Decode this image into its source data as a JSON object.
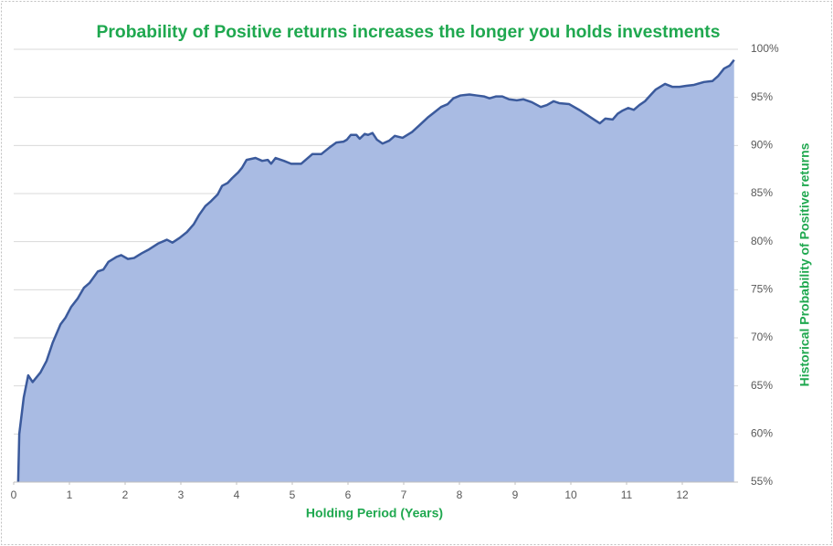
{
  "chart_data": {
    "type": "area",
    "title": "Probability of Positive returns increases the longer you holds investments",
    "x_label": "Holding Period (Years)",
    "y_label": "Historical Probability of Positive returns",
    "color": "#3b5a9c",
    "area_color": "#a9bbe3",
    "grid": true,
    "xlim": [
      0,
      13
    ],
    "xticks": [
      0,
      1,
      2,
      3,
      4,
      5,
      6,
      7,
      8,
      9,
      10,
      11,
      12
    ],
    "ylim": [
      55,
      100
    ],
    "yticks": [
      {
        "value": 55,
        "label": "55%"
      },
      {
        "value": 60,
        "label": "60%"
      },
      {
        "value": 65,
        "label": "65%"
      },
      {
        "value": 70,
        "label": "70%"
      },
      {
        "value": 75,
        "label": "75%"
      },
      {
        "value": 80,
        "label": "80%"
      },
      {
        "value": 85,
        "label": "85%"
      },
      {
        "value": 90,
        "label": "90%"
      },
      {
        "value": 95,
        "label": "95%"
      },
      {
        "value": 100,
        "label": "100%"
      }
    ],
    "x": [
      0.08,
      0.1,
      0.18,
      0.26,
      0.34,
      0.48,
      0.59,
      0.7,
      0.84,
      0.93,
      1.03,
      1.15,
      1.26,
      1.36,
      1.51,
      1.61,
      1.7,
      1.84,
      1.93,
      2.05,
      2.16,
      2.3,
      2.43,
      2.59,
      2.75,
      2.85,
      2.98,
      3.11,
      3.23,
      3.33,
      3.44,
      3.54,
      3.66,
      3.74,
      3.84,
      3.92,
      4.03,
      4.1,
      4.18,
      4.34,
      4.46,
      4.56,
      4.62,
      4.7,
      4.85,
      4.98,
      5.16,
      5.26,
      5.36,
      5.52,
      5.67,
      5.79,
      5.92,
      5.98,
      6.05,
      6.15,
      6.21,
      6.3,
      6.36,
      6.44,
      6.52,
      6.62,
      6.74,
      6.84,
      6.98,
      7.15,
      7.3,
      7.43,
      7.54,
      7.67,
      7.79,
      7.89,
      8.02,
      8.18,
      8.31,
      8.44,
      8.54,
      8.66,
      8.77,
      8.89,
      9.03,
      9.15,
      9.3,
      9.46,
      9.57,
      9.69,
      9.79,
      9.97,
      10.15,
      10.31,
      10.44,
      10.52,
      10.62,
      10.75,
      10.84,
      10.92,
      11.03,
      11.13,
      11.23,
      11.33,
      11.44,
      11.52,
      11.69,
      11.82,
      11.95,
      12.07,
      12.21,
      12.39,
      12.54,
      12.64,
      12.75,
      12.85,
      12.93
    ],
    "values": [
      55,
      60,
      63.8,
      66.1,
      65.4,
      66.4,
      67.6,
      69.5,
      71.4,
      72.1,
      73.2,
      74.1,
      75.2,
      75.7,
      76.9,
      77.1,
      77.9,
      78.4,
      78.6,
      78.2,
      78.3,
      78.8,
      79.2,
      79.8,
      80.2,
      79.9,
      80.4,
      81.0,
      81.8,
      82.8,
      83.7,
      84.2,
      84.9,
      85.8,
      86.1,
      86.6,
      87.2,
      87.7,
      88.5,
      88.7,
      88.4,
      88.5,
      88.1,
      88.7,
      88.4,
      88.1,
      88.1,
      88.6,
      89.1,
      89.1,
      89.8,
      90.3,
      90.4,
      90.6,
      91.1,
      91.1,
      90.7,
      91.2,
      91.1,
      91.3,
      90.6,
      90.2,
      90.5,
      91.0,
      90.8,
      91.4,
      92.2,
      92.9,
      93.4,
      94.0,
      94.3,
      94.9,
      95.2,
      95.3,
      95.2,
      95.1,
      94.9,
      95.1,
      95.1,
      94.8,
      94.7,
      94.8,
      94.5,
      94.0,
      94.2,
      94.6,
      94.4,
      94.3,
      93.7,
      93.1,
      92.6,
      92.3,
      92.8,
      92.7,
      93.3,
      93.6,
      93.9,
      93.7,
      94.2,
      94.6,
      95.3,
      95.8,
      96.4,
      96.1,
      96.1,
      96.2,
      96.3,
      96.6,
      96.7,
      97.2,
      98.0,
      98.3,
      98.9
    ]
  }
}
